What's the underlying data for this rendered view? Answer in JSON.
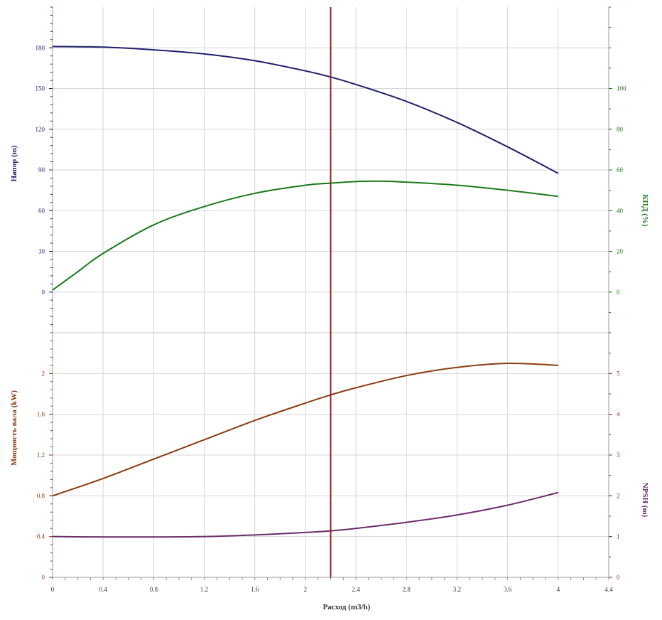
{
  "chart_data": {
    "type": "line",
    "x_axis": {
      "label": "Расход (m3/h)",
      "range": [
        0,
        4.4
      ],
      "ticks": [
        "0",
        "0.4",
        "0.8",
        "1.2",
        "1.6",
        "2",
        "2.4",
        "2.8",
        "3.2",
        "3.6",
        "4",
        "4.4"
      ]
    },
    "operating_point": {
      "x": 2.2,
      "color": "#8B2323"
    },
    "panels": [
      {
        "name": "top",
        "left_axis": {
          "label": "Напор (m)",
          "color": "#1F1F6E",
          "range": [
            -30,
            210
          ],
          "ticks": [
            "0",
            "30",
            "60",
            "90",
            "120",
            "150",
            "180"
          ]
        },
        "right_axis": {
          "label": "КПД (%)",
          "color": "#1A7A1A",
          "range": [
            -20,
            140
          ],
          "ticks": [
            "0",
            "20",
            "40",
            "60",
            "80",
            "100"
          ]
        },
        "series": [
          {
            "name": "Напор (m)",
            "axis": "left",
            "color": "#1F1F6E",
            "x": [
              0,
              0.4,
              0.8,
              1.2,
              1.6,
              2.0,
              2.2,
              2.4,
              2.8,
              3.2,
              3.6,
              4.0
            ],
            "y": [
              181,
              180.5,
              178.5,
              175.5,
              170.5,
              163,
              158.5,
              153,
              140.5,
              125,
              107,
              87.5
            ]
          },
          {
            "name": "КПД (%)",
            "axis": "right",
            "color": "#1A7A1A",
            "x": [
              0,
              0.2,
              0.4,
              0.8,
              1.2,
              1.6,
              2.0,
              2.2,
              2.4,
              2.6,
              2.8,
              3.2,
              3.6,
              4.0
            ],
            "y": [
              1,
              10,
              19,
              33,
              42,
              48.5,
              52.5,
              53.5,
              54.3,
              54.5,
              54,
              52.5,
              50,
              47
            ]
          }
        ]
      },
      {
        "name": "bottom",
        "left_axis": {
          "label": "Мощность вала (kW)",
          "color": "#8B3A0F",
          "range": [
            0,
            2.4
          ],
          "ticks": [
            "0",
            "0.4",
            "0.8",
            "1.2",
            "1.6",
            "2"
          ]
        },
        "right_axis": {
          "label": "NPSH (m)",
          "color": "#6B2C6B",
          "range": [
            0,
            6
          ],
          "ticks": [
            "0",
            "1",
            "2",
            "3",
            "4",
            "5"
          ]
        },
        "series": [
          {
            "name": "Мощность вала (kW)",
            "axis": "left",
            "color": "#8B3A0F",
            "x": [
              0,
              0.4,
              0.8,
              1.2,
              1.6,
              2.0,
              2.2,
              2.4,
              2.8,
              3.2,
              3.6,
              4.0
            ],
            "y": [
              0.8,
              0.97,
              1.16,
              1.35,
              1.54,
              1.71,
              1.79,
              1.86,
              1.98,
              2.06,
              2.1,
              2.08
            ]
          },
          {
            "name": "NPSH (m)",
            "axis": "right",
            "color": "#6B2C6B",
            "x": [
              0,
              0.4,
              0.8,
              1.2,
              1.6,
              2.0,
              2.2,
              2.4,
              2.8,
              3.2,
              3.6,
              4.0
            ],
            "y": [
              1,
              0.99,
              0.99,
              1.0,
              1.04,
              1.1,
              1.14,
              1.2,
              1.35,
              1.53,
              1.77,
              2.08
            ]
          }
        ]
      }
    ],
    "grid": true
  }
}
